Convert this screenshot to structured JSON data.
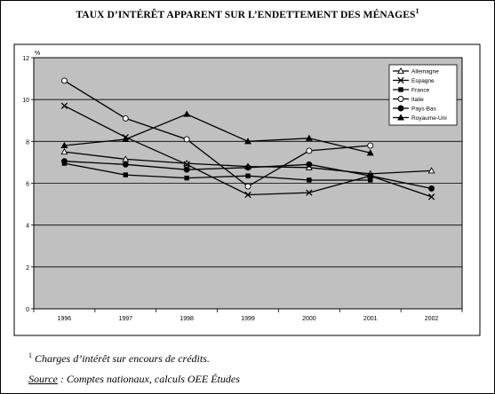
{
  "header": {
    "title": "TAUX D’INTÉRÊT APPARENT SUR L’ENDETTEMENT DES MÉNAGES",
    "title_note": "1"
  },
  "footer": {
    "note_number": "1",
    "note_text": "Charges d’intérêt sur encours de crédits.",
    "source_label": "Source",
    "source_text": " : Comptes nationaux, calculs OEE Études"
  },
  "chart_data": {
    "type": "line",
    "title": "TAUX D’INTÉRÊT APPARENT SUR L’ENDETTEMENT DES MÉNAGES",
    "xlabel": "",
    "ylabel": "%",
    "x": [
      "1996",
      "1997",
      "1998",
      "1999",
      "2000",
      "2001",
      "2002"
    ],
    "ylim": [
      0,
      12
    ],
    "yticks": [
      "0",
      "2",
      "4",
      "6",
      "8",
      "10",
      "12"
    ],
    "grid": true,
    "plot_background": "#c0c0c0",
    "legend_position": "top-right",
    "series": [
      {
        "name": "Allemagne",
        "marker": "triangle-open",
        "values": [
          7.5,
          7.15,
          6.95,
          6.8,
          6.75,
          6.45,
          6.6
        ]
      },
      {
        "name": "Espagne",
        "marker": "x",
        "values": [
          9.7,
          8.2,
          6.9,
          5.45,
          5.55,
          6.35,
          5.35
        ]
      },
      {
        "name": "France",
        "marker": "square-filled",
        "values": [
          6.95,
          6.4,
          6.25,
          6.35,
          6.15,
          6.15,
          null
        ]
      },
      {
        "name": "Italie",
        "marker": "circle-open",
        "values": [
          10.9,
          9.1,
          8.1,
          5.85,
          7.55,
          7.8,
          null
        ]
      },
      {
        "name": "Pays-Bas",
        "marker": "circle-filled",
        "values": [
          7.05,
          6.9,
          6.65,
          6.75,
          6.9,
          6.35,
          5.75
        ]
      },
      {
        "name": "Royaume-Uni",
        "marker": "triangle-filled",
        "values": [
          7.8,
          8.1,
          9.3,
          8.0,
          8.15,
          7.45,
          null
        ]
      }
    ]
  }
}
